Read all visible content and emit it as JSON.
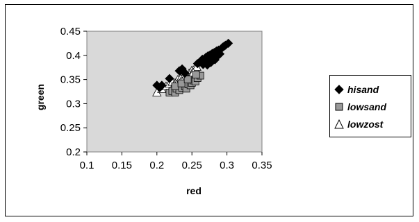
{
  "chart_data": {
    "type": "scatter",
    "title": "",
    "xlabel": "red",
    "ylabel": "green",
    "xlim": [
      0.1,
      0.35
    ],
    "ylim": [
      0.2,
      0.45
    ],
    "xticks": [
      "0.1",
      "0.15",
      "0.2",
      "0.25",
      "0.3",
      "0.35"
    ],
    "yticks": [
      "0.2",
      "0.25",
      "0.3",
      "0.35",
      "0.4",
      "0.45"
    ],
    "plot_background": "#d9d9d9",
    "grid": false,
    "legend_position": "right",
    "series": [
      {
        "name": "hisand",
        "marker": "diamond",
        "color": "#000000",
        "points": [
          [
            0.2,
            0.338
          ],
          [
            0.204,
            0.333
          ],
          [
            0.207,
            0.338
          ],
          [
            0.218,
            0.352
          ],
          [
            0.232,
            0.368
          ],
          [
            0.236,
            0.372
          ],
          [
            0.24,
            0.363
          ],
          [
            0.258,
            0.383
          ],
          [
            0.261,
            0.386
          ],
          [
            0.264,
            0.389
          ],
          [
            0.266,
            0.381
          ],
          [
            0.268,
            0.393
          ],
          [
            0.27,
            0.396
          ],
          [
            0.271,
            0.386
          ],
          [
            0.273,
            0.399
          ],
          [
            0.274,
            0.39
          ],
          [
            0.276,
            0.401
          ],
          [
            0.277,
            0.385
          ],
          [
            0.279,
            0.404
          ],
          [
            0.28,
            0.395
          ],
          [
            0.282,
            0.406
          ],
          [
            0.283,
            0.391
          ],
          [
            0.285,
            0.409
          ],
          [
            0.286,
            0.398
          ],
          [
            0.288,
            0.411
          ],
          [
            0.29,
            0.403
          ],
          [
            0.292,
            0.414
          ],
          [
            0.294,
            0.417
          ],
          [
            0.296,
            0.419
          ],
          [
            0.298,
            0.421
          ],
          [
            0.302,
            0.425
          ],
          [
            0.265,
            0.392
          ],
          [
            0.272,
            0.38
          ],
          [
            0.278,
            0.397
          ],
          [
            0.284,
            0.4
          ]
        ]
      },
      {
        "name": "lowsand",
        "marker": "square",
        "color": "#999999",
        "points": [
          [
            0.218,
            0.323
          ],
          [
            0.222,
            0.326
          ],
          [
            0.226,
            0.323
          ],
          [
            0.228,
            0.331
          ],
          [
            0.232,
            0.328
          ],
          [
            0.236,
            0.333
          ],
          [
            0.24,
            0.336
          ],
          [
            0.242,
            0.331
          ],
          [
            0.245,
            0.34
          ],
          [
            0.248,
            0.338
          ],
          [
            0.25,
            0.343
          ],
          [
            0.252,
            0.348
          ],
          [
            0.255,
            0.346
          ],
          [
            0.258,
            0.353
          ],
          [
            0.262,
            0.358
          ],
          [
            0.226,
            0.336
          ],
          [
            0.235,
            0.342
          ],
          [
            0.244,
            0.35
          ],
          [
            0.256,
            0.36
          ]
        ]
      },
      {
        "name": "lowzost",
        "marker": "triangle",
        "color": "#ffffff",
        "points": [
          [
            0.2,
            0.323
          ],
          [
            0.207,
            0.33
          ],
          [
            0.213,
            0.336
          ],
          [
            0.218,
            0.341
          ],
          [
            0.222,
            0.345
          ],
          [
            0.226,
            0.343
          ],
          [
            0.23,
            0.35
          ],
          [
            0.234,
            0.353
          ],
          [
            0.238,
            0.356
          ],
          [
            0.242,
            0.36
          ],
          [
            0.246,
            0.363
          ],
          [
            0.25,
            0.369
          ],
          [
            0.254,
            0.373
          ],
          [
            0.257,
            0.376
          ],
          [
            0.236,
            0.346
          ],
          [
            0.244,
            0.352
          ],
          [
            0.248,
            0.357
          ],
          [
            0.252,
            0.364
          ],
          [
            0.228,
            0.34
          ],
          [
            0.24,
            0.366
          ]
        ]
      }
    ]
  }
}
